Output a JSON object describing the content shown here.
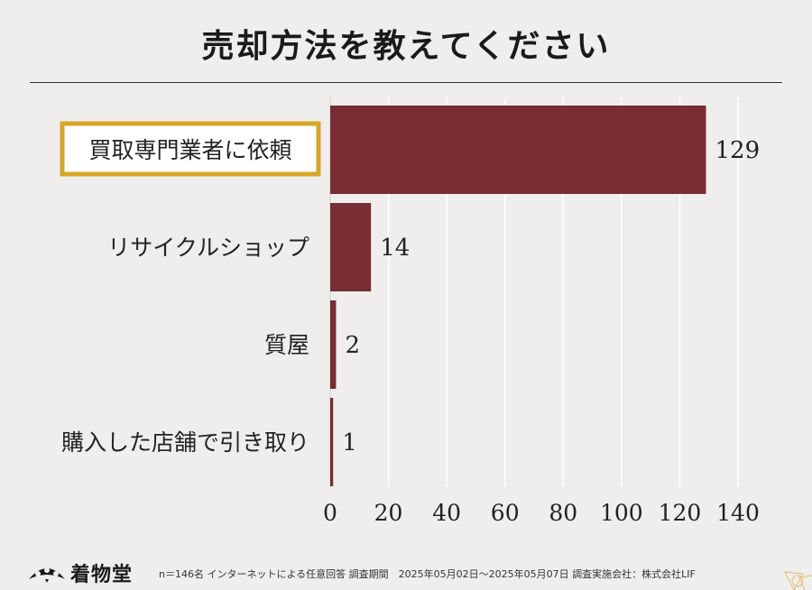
{
  "header": {
    "title": "売却方法を教えてください"
  },
  "chart_data": {
    "type": "bar",
    "orientation": "horizontal",
    "categories": [
      "買取専門業者に依頼",
      "リサイクルショップ",
      "質屋",
      "購入した店舗で引き取り"
    ],
    "values": [
      129,
      14,
      2,
      1
    ],
    "highlighted_category": "買取専門業者に依頼",
    "xticks": [
      0,
      20,
      40,
      60,
      80,
      100,
      120,
      140
    ],
    "xlim": [
      0,
      140
    ],
    "grid": true,
    "colors": {
      "bar": "#772d33",
      "highlight_border": "#d8a627",
      "grid": "#ffffff"
    }
  },
  "footer": {
    "brand": "着物堂",
    "note": "n＝146名 インターネットによる任意回答 調査期間　2025年05月02日～2025年05月07日 調査実施会社：株式会社LIF"
  }
}
